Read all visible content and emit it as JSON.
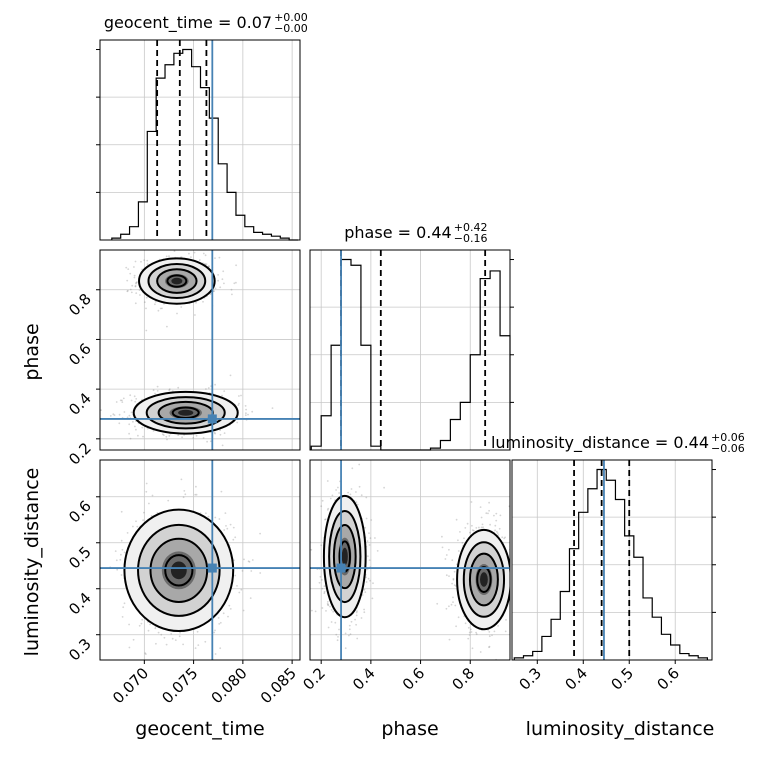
{
  "chart_data": {
    "type": "corner",
    "parameters": [
      "geocent_time",
      "phase",
      "luminosity_distance"
    ],
    "ranges": {
      "geocent_time": [
        0.0655,
        0.0858
      ],
      "phase": [
        0.155,
        0.96
      ],
      "luminosity_distance": [
        0.245,
        0.68
      ]
    },
    "truths": {
      "geocent_time": 0.0769,
      "phase": 0.28,
      "luminosity_distance": 0.445
    },
    "ticks": {
      "geocent_time": [
        0.07,
        0.075,
        0.08,
        0.085
      ],
      "phase": [
        0.2,
        0.4,
        0.6,
        0.8
      ],
      "luminosity_distance": [
        0.3,
        0.4,
        0.5,
        0.6
      ]
    },
    "tick_labels": {
      "geocent_time": [
        "0.070",
        "0.075",
        "0.080",
        "0.085"
      ],
      "phase": [
        "0.2",
        "0.4",
        "0.6",
        "0.8"
      ],
      "luminosity_distance": [
        "0.3",
        "0.4",
        "0.5",
        "0.6"
      ]
    },
    "axis_labels": {
      "geocent_time": "geocent_time",
      "phase": "phase",
      "luminosity_distance": "luminosity_distance"
    },
    "titles": [
      {
        "param": "geocent_time",
        "text": "geocent_time = 0.07",
        "plus": "+0.00",
        "minus": "−0.00"
      },
      {
        "param": "phase",
        "text": "phase = 0.44",
        "plus": "+0.42",
        "minus": "−0.16"
      },
      {
        "param": "luminosity_distance",
        "text": "luminosity_distance = 0.44",
        "plus": "+0.06",
        "minus": "−0.06"
      }
    ],
    "quantiles": {
      "geocent_time": [
        0.0713,
        0.0736,
        0.0763
      ],
      "phase": [
        0.28,
        0.44,
        0.86
      ],
      "luminosity_distance": [
        0.38,
        0.44,
        0.5
      ]
    },
    "histograms": {
      "geocent_time": {
        "edges": [
          0.0667,
          0.0676,
          0.0685,
          0.0694,
          0.0703,
          0.0712,
          0.0721,
          0.073,
          0.0739,
          0.0748,
          0.0757,
          0.0766,
          0.0775,
          0.0784,
          0.0793,
          0.0802,
          0.0811,
          0.082,
          0.0829,
          0.0838,
          0.0847,
          0.0856
        ],
        "counts": [
          1,
          3,
          7,
          20,
          57,
          85,
          92,
          98,
          100,
          91,
          80,
          64,
          40,
          25,
          13,
          7,
          4,
          3,
          2,
          1,
          0
        ]
      },
      "phase": {
        "edges": [
          0.16,
          0.2,
          0.24,
          0.28,
          0.32,
          0.36,
          0.4,
          0.44,
          0.48,
          0.52,
          0.56,
          0.6,
          0.64,
          0.68,
          0.72,
          0.76,
          0.8,
          0.84,
          0.88,
          0.92,
          0.96
        ],
        "counts": [
          2,
          18,
          55,
          100,
          97,
          55,
          2,
          0,
          0,
          0,
          0,
          0,
          1,
          5,
          16,
          25,
          50,
          90,
          94,
          60
        ]
      },
      "luminosity_distance": {
        "edges": [
          0.25,
          0.27,
          0.29,
          0.31,
          0.33,
          0.35,
          0.37,
          0.39,
          0.41,
          0.43,
          0.45,
          0.47,
          0.49,
          0.51,
          0.53,
          0.55,
          0.57,
          0.59,
          0.61,
          0.63,
          0.65,
          0.67
        ],
        "counts": [
          1,
          2,
          4,
          11,
          19,
          32,
          52,
          69,
          80,
          89,
          84,
          75,
          58,
          48,
          29,
          20,
          12,
          7,
          3,
          2,
          1
        ]
      }
    },
    "modes_2d": [
      {
        "x": "geocent_time",
        "y": "phase",
        "cx": 0.0733,
        "cy": 0.835,
        "sx": 0.0016,
        "sy": 0.038,
        "weight": 1.0
      },
      {
        "x": "geocent_time",
        "y": "phase",
        "cx": 0.0742,
        "cy": 0.305,
        "sx": 0.0022,
        "sy": 0.035,
        "weight": 1.0
      },
      {
        "x": "geocent_time",
        "y": "luminosity_distance",
        "cx": 0.0735,
        "cy": 0.44,
        "sx": 0.0023,
        "sy": 0.055,
        "weight": 1.0
      },
      {
        "x": "phase",
        "y": "luminosity_distance",
        "cx": 0.295,
        "cy": 0.47,
        "sx": 0.035,
        "sy": 0.055,
        "weight": 1.0
      },
      {
        "x": "phase",
        "y": "luminosity_distance",
        "cx": 0.855,
        "cy": 0.42,
        "sx": 0.045,
        "sy": 0.045,
        "weight": 1.0
      }
    ],
    "colors": {
      "truth": "#4682b4",
      "line": "#000000",
      "grid": "#c8c8c8"
    },
    "grid": true
  }
}
